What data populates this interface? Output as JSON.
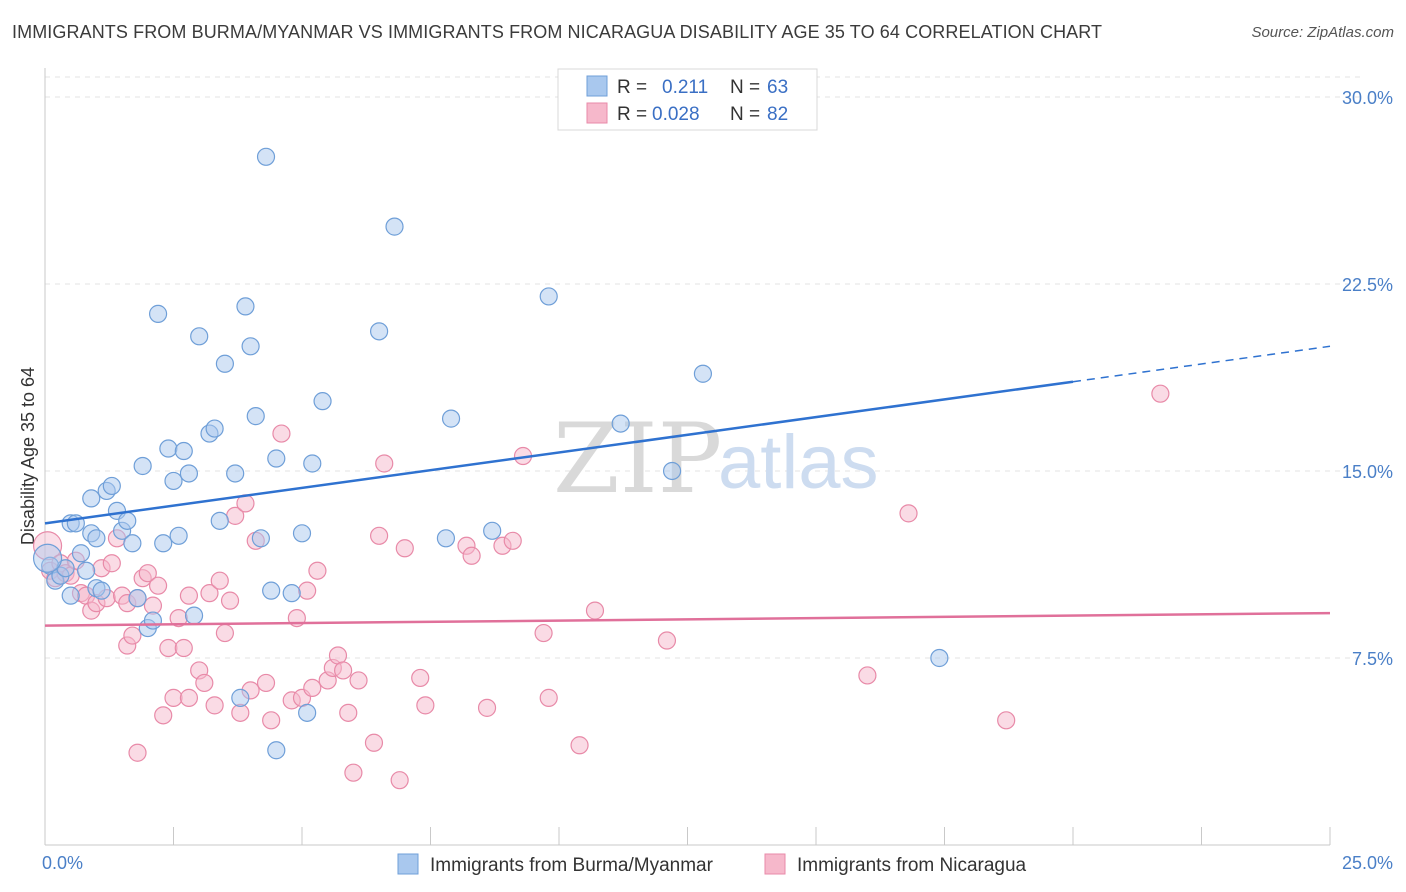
{
  "title": "IMMIGRANTS FROM BURMA/MYANMAR VS IMMIGRANTS FROM NICARAGUA DISABILITY AGE 35 TO 64 CORRELATION CHART",
  "source": "Source: ZipAtlas.com",
  "watermark": {
    "zip": "ZIP",
    "atlas": "atlas"
  },
  "legend": {
    "r_label": "R =",
    "n_label": "N =",
    "series": [
      {
        "r": "0.211",
        "n": "63"
      },
      {
        "r": "0.028",
        "n": "82"
      }
    ]
  },
  "colors": {
    "blue_fill": "#a9c8ee",
    "blue_stroke": "#6f9fd8",
    "blue_line": "#2f72d0",
    "pink_fill": "#f6b8cb",
    "pink_stroke": "#e88aa8",
    "pink_line": "#e0709a",
    "grid": "#e3e3e3",
    "tick_text": "#4a7fc7"
  },
  "chart_data": {
    "type": "scatter",
    "title": "IMMIGRANTS FROM BURMA/MYANMAR VS IMMIGRANTS FROM NICARAGUA DISABILITY AGE 35 TO 64 CORRELATION CHART",
    "xlabel": "",
    "ylabel": "Disability Age 35 to 64",
    "xlim": [
      0,
      25
    ],
    "ylim": [
      0,
      30.8
    ],
    "x_tick_labels": [
      "0.0%",
      "25.0%"
    ],
    "y_ticks": [
      7.5,
      15.0,
      22.5,
      30.0
    ],
    "y_tick_labels": [
      "7.5%",
      "15.0%",
      "22.5%",
      "30.0%"
    ],
    "grid": true,
    "legend_position": "top-center",
    "series": [
      {
        "name": "Immigrants from Burma/Myanmar",
        "color": "blue",
        "points": [
          [
            0.1,
            11.2
          ],
          [
            0.2,
            10.6
          ],
          [
            0.3,
            10.8
          ],
          [
            0.4,
            11.1
          ],
          [
            0.5,
            10.0
          ],
          [
            0.5,
            12.9
          ],
          [
            0.6,
            12.9
          ],
          [
            0.7,
            11.7
          ],
          [
            0.8,
            11.0
          ],
          [
            0.9,
            12.5
          ],
          [
            0.9,
            13.9
          ],
          [
            1.0,
            12.3
          ],
          [
            1.0,
            10.3
          ],
          [
            1.1,
            10.2
          ],
          [
            1.2,
            14.2
          ],
          [
            1.3,
            14.4
          ],
          [
            1.4,
            13.4
          ],
          [
            1.5,
            12.6
          ],
          [
            1.6,
            13.0
          ],
          [
            1.7,
            12.1
          ],
          [
            1.8,
            9.9
          ],
          [
            1.9,
            15.2
          ],
          [
            2.0,
            8.7
          ],
          [
            2.1,
            9.0
          ],
          [
            2.2,
            21.3
          ],
          [
            2.3,
            12.1
          ],
          [
            2.4,
            15.9
          ],
          [
            2.5,
            14.6
          ],
          [
            2.6,
            12.4
          ],
          [
            2.7,
            15.8
          ],
          [
            2.8,
            14.9
          ],
          [
            2.9,
            9.2
          ],
          [
            3.0,
            20.4
          ],
          [
            3.2,
            16.5
          ],
          [
            3.3,
            16.7
          ],
          [
            3.4,
            13.0
          ],
          [
            3.5,
            19.3
          ],
          [
            3.7,
            14.9
          ],
          [
            3.8,
            5.9
          ],
          [
            3.9,
            21.6
          ],
          [
            4.0,
            20.0
          ],
          [
            4.1,
            17.2
          ],
          [
            4.2,
            12.3
          ],
          [
            4.3,
            27.6
          ],
          [
            4.4,
            10.2
          ],
          [
            4.5,
            15.5
          ],
          [
            4.5,
            3.8
          ],
          [
            4.8,
            10.1
          ],
          [
            5.0,
            12.5
          ],
          [
            5.1,
            5.3
          ],
          [
            5.2,
            15.3
          ],
          [
            5.4,
            17.8
          ],
          [
            6.5,
            20.6
          ],
          [
            6.8,
            24.8
          ],
          [
            7.8,
            12.3
          ],
          [
            7.9,
            17.1
          ],
          [
            8.7,
            12.6
          ],
          [
            9.8,
            22.0
          ],
          [
            11.2,
            16.9
          ],
          [
            12.2,
            15.0
          ],
          [
            12.8,
            18.9
          ],
          [
            17.4,
            7.5
          ],
          [
            0.05,
            11.5
          ]
        ]
      },
      {
        "name": "Immigrants from Nicaragua",
        "color": "pink",
        "points": [
          [
            0.05,
            12.0
          ],
          [
            0.1,
            11.0
          ],
          [
            0.2,
            10.7
          ],
          [
            0.3,
            11.3
          ],
          [
            0.4,
            10.9
          ],
          [
            0.5,
            10.8
          ],
          [
            0.6,
            11.4
          ],
          [
            0.7,
            10.1
          ],
          [
            0.8,
            10.0
          ],
          [
            0.9,
            9.4
          ],
          [
            1.0,
            9.7
          ],
          [
            1.1,
            11.1
          ],
          [
            1.2,
            9.9
          ],
          [
            1.3,
            11.3
          ],
          [
            1.4,
            12.3
          ],
          [
            1.5,
            10.0
          ],
          [
            1.6,
            9.7
          ],
          [
            1.6,
            8.0
          ],
          [
            1.7,
            8.4
          ],
          [
            1.8,
            9.9
          ],
          [
            1.8,
            3.7
          ],
          [
            1.9,
            10.7
          ],
          [
            2.0,
            10.9
          ],
          [
            2.1,
            9.6
          ],
          [
            2.2,
            10.4
          ],
          [
            2.3,
            5.2
          ],
          [
            2.4,
            7.9
          ],
          [
            2.5,
            5.9
          ],
          [
            2.6,
            9.1
          ],
          [
            2.7,
            7.9
          ],
          [
            2.8,
            5.9
          ],
          [
            2.8,
            10.0
          ],
          [
            3.0,
            7.0
          ],
          [
            3.1,
            6.5
          ],
          [
            3.2,
            10.1
          ],
          [
            3.3,
            5.6
          ],
          [
            3.4,
            10.6
          ],
          [
            3.5,
            8.5
          ],
          [
            3.6,
            9.8
          ],
          [
            3.7,
            13.2
          ],
          [
            3.8,
            5.3
          ],
          [
            3.9,
            13.7
          ],
          [
            4.0,
            6.2
          ],
          [
            4.1,
            12.2
          ],
          [
            4.3,
            6.5
          ],
          [
            4.4,
            5.0
          ],
          [
            4.6,
            16.5
          ],
          [
            4.8,
            5.8
          ],
          [
            4.9,
            9.1
          ],
          [
            5.0,
            5.9
          ],
          [
            5.1,
            10.2
          ],
          [
            5.2,
            6.3
          ],
          [
            5.3,
            11.0
          ],
          [
            5.5,
            6.6
          ],
          [
            5.6,
            7.1
          ],
          [
            5.7,
            7.6
          ],
          [
            5.8,
            7.0
          ],
          [
            5.9,
            5.3
          ],
          [
            6.0,
            2.9
          ],
          [
            6.1,
            6.6
          ],
          [
            6.4,
            4.1
          ],
          [
            6.5,
            12.4
          ],
          [
            6.6,
            15.3
          ],
          [
            6.9,
            2.6
          ],
          [
            7.0,
            11.9
          ],
          [
            7.3,
            6.7
          ],
          [
            7.4,
            5.6
          ],
          [
            8.2,
            12.0
          ],
          [
            8.3,
            11.6
          ],
          [
            8.6,
            5.5
          ],
          [
            8.9,
            12.0
          ],
          [
            9.1,
            12.2
          ],
          [
            9.3,
            15.6
          ],
          [
            9.7,
            8.5
          ],
          [
            9.8,
            5.9
          ],
          [
            10.4,
            4.0
          ],
          [
            10.7,
            9.4
          ],
          [
            12.1,
            8.2
          ],
          [
            16.0,
            6.8
          ],
          [
            16.8,
            13.3
          ],
          [
            18.7,
            5.0
          ],
          [
            21.7,
            18.1
          ]
        ]
      }
    ],
    "trend_lines": [
      {
        "series": "Immigrants from Burma/Myanmar",
        "x_solid": [
          0,
          20.0
        ],
        "x_dashed": [
          20.0,
          25
        ],
        "y_at_0": 12.9,
        "y_at_25": 20.0
      },
      {
        "series": "Immigrants from Nicaragua",
        "x_solid": [
          0,
          25
        ],
        "y_at_0": 8.8,
        "y_at_25": 9.3
      }
    ]
  },
  "bottom_legend": [
    {
      "label": "Immigrants from Burma/Myanmar"
    },
    {
      "label": "Immigrants from Nicaragua"
    }
  ]
}
